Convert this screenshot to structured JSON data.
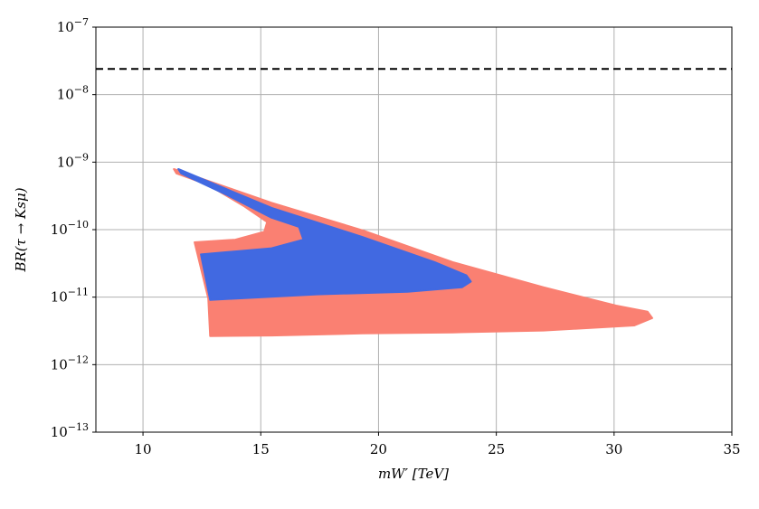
{
  "chart_data": {
    "type": "area",
    "x_label": "mW′ [TeV]",
    "y_label": "BR(τ → Ksμ)",
    "xlim": [
      8,
      35
    ],
    "xticks": [
      10,
      15,
      20,
      25,
      30,
      35
    ],
    "ylim": [
      1e-13,
      1e-07
    ],
    "log_y": true,
    "grid": true,
    "yticks": [
      {
        "value": 1e-13,
        "label": "10",
        "exponent": "−13"
      },
      {
        "value": 1e-12,
        "label": "10",
        "exponent": "−12"
      },
      {
        "value": 1e-11,
        "label": "10",
        "exponent": "−11"
      },
      {
        "value": 1e-10,
        "label": "10",
        "exponent": "−10"
      },
      {
        "value": 1e-09,
        "label": "10",
        "exponent": "−9"
      },
      {
        "value": 1e-08,
        "label": "10",
        "exponent": "−8"
      },
      {
        "value": 1e-07,
        "label": "10",
        "exponent": "−7"
      }
    ],
    "hlines": [
      {
        "value": 2.4e-08,
        "color": "#000000",
        "dashed": true
      }
    ],
    "series": [
      {
        "color": "#fa8072",
        "x": [
          11.31,
          15.46,
          19.31,
          23.15,
          27.0,
          30.08,
          31.42,
          31.62,
          30.85,
          27.0,
          23.15,
          19.31,
          15.46,
          12.85,
          12.77,
          12.19,
          13.92,
          15.15,
          15.27,
          14.31,
          12.77,
          11.42
        ],
        "values": [
          7.9e-10,
          2.5e-10,
          9.8e-11,
          3.3e-11,
          1.4e-11,
          7.5e-12,
          6.1e-12,
          4.9e-12,
          3.8e-12,
          3.2e-12,
          3e-12,
          2.9e-12,
          2.7e-12,
          2.65e-12,
          9.6e-12,
          6.5e-11,
          7.1e-11,
          9.3e-11,
          1.3e-10,
          2.2e-10,
          4.6e-10,
          6.8e-10
        ]
      },
      {
        "color": "#4169e1",
        "x": [
          11.5,
          15.46,
          19.31,
          22.38,
          23.73,
          23.92,
          23.54,
          21.23,
          17.38,
          12.85,
          12.46,
          15.46,
          16.81,
          16.62,
          15.46,
          13.54,
          11.62
        ],
        "values": [
          7.9e-10,
          2.1e-10,
          7.8e-11,
          3.3e-11,
          2.1e-11,
          1.7e-11,
          1.4e-11,
          1.2e-11,
          1.1e-11,
          9.1e-12,
          4.3e-11,
          5.3e-11,
          7.1e-11,
          1.1e-10,
          1.5e-10,
          3.3e-10,
          6.8e-10
        ]
      }
    ]
  }
}
